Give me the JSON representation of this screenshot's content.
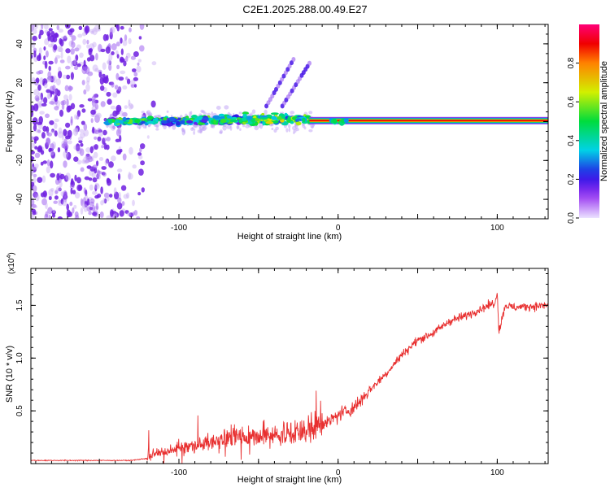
{
  "title": "C2E1.2025.288.00.49.E27",
  "chart_data": [
    {
      "type": "heatmap",
      "xlabel": "Height of straight line (km)",
      "ylabel": "Frequency (Hz)",
      "xlim": [
        -193,
        132
      ],
      "ylim": [
        -50,
        50
      ],
      "xticks": [
        {
          "value": -100,
          "label": "-100"
        },
        {
          "value": 0,
          "label": "0"
        },
        {
          "value": 100,
          "label": "100"
        }
      ],
      "yticks": [
        {
          "value": -40,
          "label": "-40"
        },
        {
          "value": -20,
          "label": "-20"
        },
        {
          "value": 0,
          "label": "0"
        },
        {
          "value": 20,
          "label": "20"
        },
        {
          "value": 40,
          "label": "40"
        }
      ],
      "colorbar": {
        "label": "Normalized spectral amplitude",
        "range": [
          0,
          1
        ],
        "ticks": [
          {
            "value": 0.0,
            "label": "0.0"
          },
          {
            "value": 0.2,
            "label": "0.2"
          },
          {
            "value": 0.4,
            "label": "0.4"
          },
          {
            "value": 0.6,
            "label": "0.6"
          },
          {
            "value": 0.8,
            "label": "0.8"
          }
        ]
      },
      "features": {
        "noise_region_km": [
          -193,
          -120
        ],
        "carrier_start_km": -145,
        "strong_carrier_start_km": -18,
        "harmonic_branches": [
          {
            "x_km": [
              -45,
              -28
            ],
            "freq_hz": [
              8,
              32
            ]
          },
          {
            "x_km": [
              -35,
              -18
            ],
            "freq_hz": [
              8,
              30
            ]
          }
        ]
      }
    },
    {
      "type": "line",
      "xlabel": "Height of straight line (km)",
      "ylabel": "SNR (10 * v/v)",
      "scale_label": "(x10",
      "scale_exponent": "4",
      "xlim": [
        -193,
        132
      ],
      "ylim": [
        0,
        18500
      ],
      "xticks": [
        {
          "value": -100,
          "label": "-100"
        },
        {
          "value": 0,
          "label": "0"
        },
        {
          "value": 100,
          "label": "100"
        }
      ],
      "yticks": [
        {
          "value": 5000,
          "label": "0.5"
        },
        {
          "value": 10000,
          "label": "1.0"
        },
        {
          "value": 15000,
          "label": "1.5"
        }
      ],
      "color": "#e83030",
      "series": [
        {
          "name": "SNR",
          "x": [
            -193,
            -160,
            -130,
            -120,
            -110,
            -100,
            -90,
            -80,
            -70,
            -60,
            -50,
            -40,
            -30,
            -20,
            -10,
            0,
            10,
            20,
            30,
            40,
            50,
            60,
            70,
            80,
            90,
            95,
            99,
            100,
            101,
            105,
            110,
            120,
            132
          ],
          "y": [
            300,
            300,
            300,
            500,
            1000,
            1300,
            1600,
            1900,
            2200,
            2300,
            2400,
            2500,
            2600,
            2700,
            3500,
            4600,
            5300,
            7000,
            8500,
            10300,
            11700,
            12400,
            13500,
            14000,
            14700,
            15000,
            15300,
            16500,
            12500,
            15000,
            14800,
            14900,
            15000
          ]
        }
      ]
    }
  ]
}
